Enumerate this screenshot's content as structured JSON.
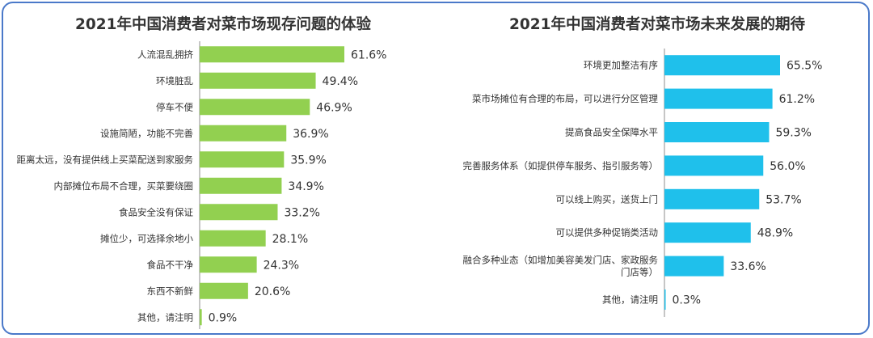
{
  "chart_data": [
    {
      "type": "bar",
      "orientation": "horizontal",
      "title": "2021年中国消费者对菜市场现存问题的体验",
      "categories": [
        "人流混乱拥挤",
        "环境脏乱",
        "停车不便",
        "设施简陋，功能不完善",
        "距离太远，没有提供线上买菜配送到家服务",
        "内部摊位布局不合理，买菜要绕圈",
        "食品安全没有保证",
        "摊位少，可选择余地小",
        "食品不干净",
        "东西不新鲜",
        "其他，请注明"
      ],
      "values": [
        61.6,
        49.4,
        46.9,
        36.9,
        35.9,
        34.9,
        33.2,
        28.1,
        24.3,
        20.6,
        0.9
      ],
      "value_labels": [
        "61.6%",
        "49.4%",
        "46.9%",
        "36.9%",
        "35.9%",
        "34.9%",
        "33.2%",
        "28.1%",
        "24.3%",
        "20.6%",
        "0.9%"
      ],
      "unit": "%",
      "color": "#92d050",
      "xlim": [
        0,
        70
      ]
    },
    {
      "type": "bar",
      "orientation": "horizontal",
      "title": "2021年中国消费者对菜市场未来发展的期待",
      "categories": [
        "环境更加整洁有序",
        "菜市场摊位有合理的布局，可以进行分区管理",
        "提高食品安全保障水平",
        "完善服务体系（如提供停车服务、指引服务等）",
        "可以线上购买，送货上门",
        "可以提供多种促销类活动",
        "融合多种业态（如增加美容美发门店、家政服务门店等）",
        "其他，请注明"
      ],
      "category_lines": [
        [
          "环境更加整洁有序"
        ],
        [
          "菜市场摊位有合理的布局，可以进行分区管理"
        ],
        [
          "提高食品安全保障水平"
        ],
        [
          "完善服务体系（如提供停车服务、指引服务等）"
        ],
        [
          "可以线上购买，送货上门"
        ],
        [
          "可以提供多种促销类活动"
        ],
        [
          "融合多种业态（如增加美容美发门店、家政服务",
          "门店等）"
        ],
        [
          "其他，请注明"
        ]
      ],
      "values": [
        65.5,
        61.2,
        59.3,
        56.0,
        53.7,
        48.9,
        33.6,
        0.3
      ],
      "value_labels": [
        "65.5%",
        "61.2%",
        "59.3%",
        "56.0%",
        "53.7%",
        "48.9%",
        "33.6%",
        "0.3%"
      ],
      "unit": "%",
      "color": "#1fc0eb",
      "xlim": [
        0,
        70
      ]
    }
  ]
}
